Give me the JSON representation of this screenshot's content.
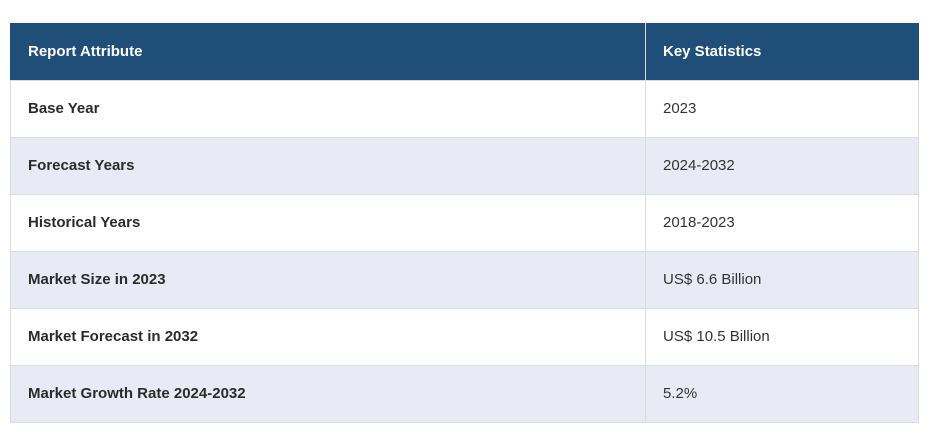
{
  "table": {
    "headers": [
      "Report Attribute",
      "Key Statistics"
    ],
    "rows": [
      {
        "attribute": "Base Year",
        "value": "2023"
      },
      {
        "attribute": "Forecast Years",
        "value": "2024-2032"
      },
      {
        "attribute": "Historical Years",
        "value": "2018-2023"
      },
      {
        "attribute": "Market Size in 2023",
        "value": "US$ 6.6 Billion"
      },
      {
        "attribute": "Market Forecast in 2032",
        "value": "US$ 10.5 Billion"
      },
      {
        "attribute": "Market Growth Rate 2024-2032",
        "value": "5.2%"
      }
    ],
    "colors": {
      "header_bg": "#1f4e79",
      "header_text": "#ffffff",
      "stripe_bg": "#e8eaf5",
      "border": "#dcdcdc"
    }
  }
}
